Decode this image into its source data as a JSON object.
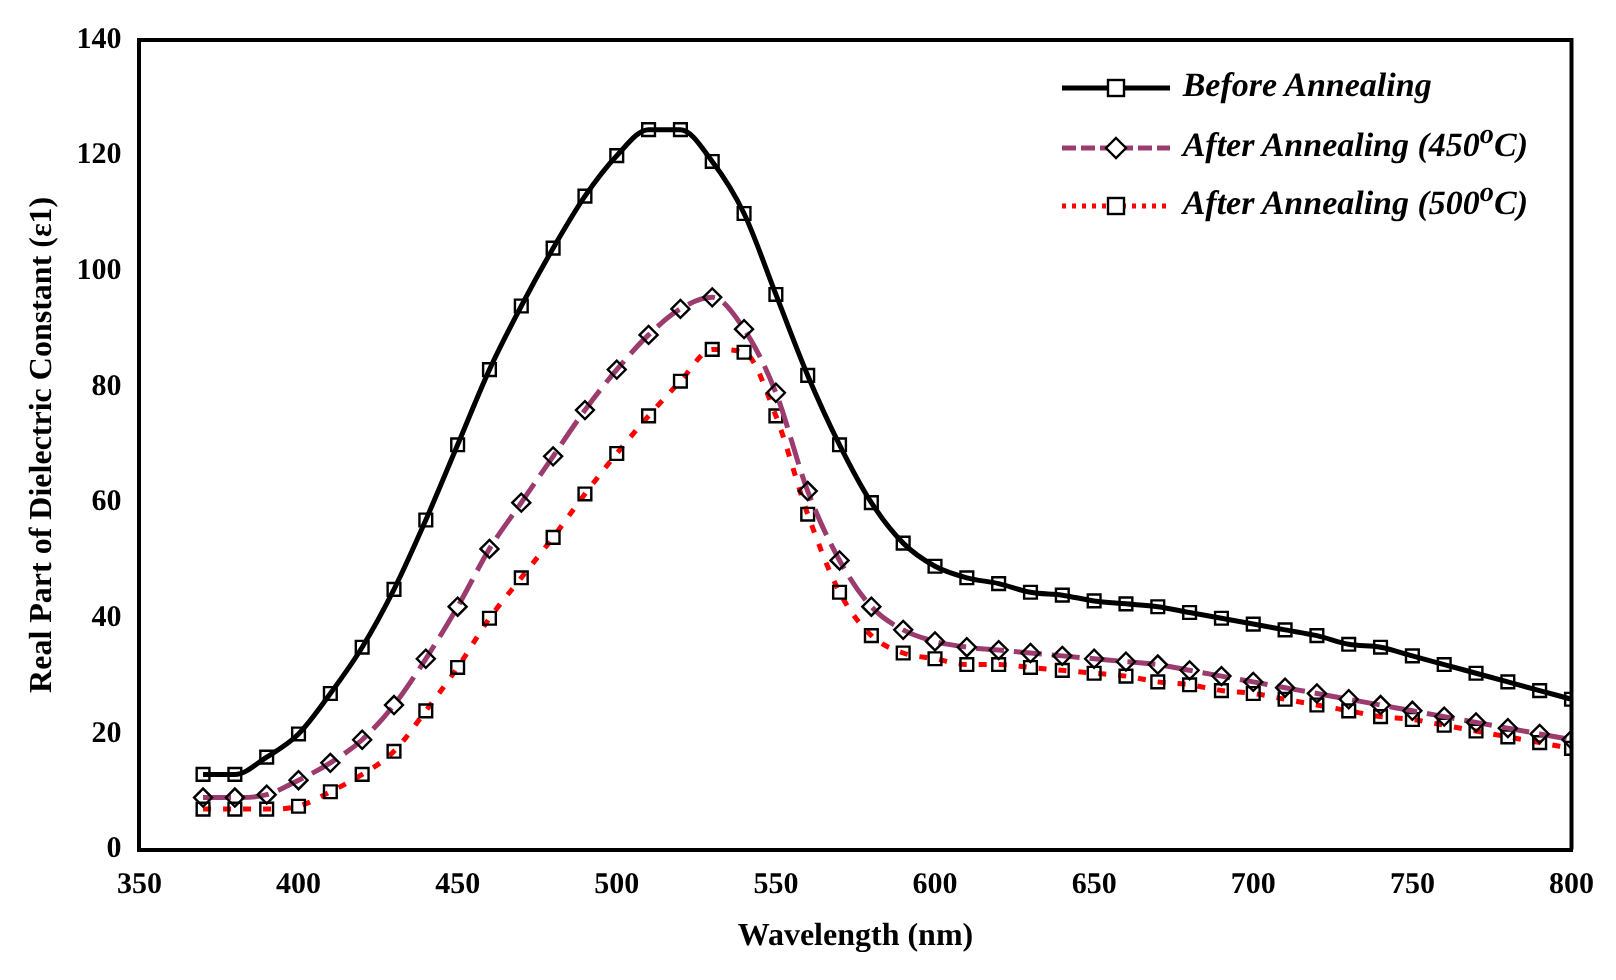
{
  "chart_data": {
    "type": "line",
    "xlabel": "Wavelength (nm)",
    "ylabel": "Real Part of Dielectric Constant (ε1)",
    "x": [
      370,
      380,
      390,
      400,
      410,
      420,
      430,
      440,
      450,
      460,
      470,
      480,
      490,
      500,
      510,
      520,
      530,
      540,
      550,
      560,
      570,
      580,
      590,
      600,
      610,
      620,
      630,
      640,
      650,
      660,
      670,
      680,
      690,
      700,
      710,
      720,
      730,
      740,
      750,
      760,
      770,
      780,
      790,
      800
    ],
    "series": [
      {
        "name": "Before Annealing",
        "color": "#000000",
        "marker": "square",
        "line_style": "solid",
        "values": [
          13,
          13,
          16,
          20,
          27,
          35,
          45,
          57,
          70,
          83,
          94,
          104,
          113,
          120,
          124.5,
          124.5,
          119,
          110,
          96,
          82,
          70,
          60,
          53,
          49,
          47,
          46,
          44.5,
          44,
          43,
          42.5,
          42,
          41,
          40,
          39,
          38,
          37,
          35.5,
          35,
          33.5,
          32,
          30.5,
          29,
          27.5,
          26
        ]
      },
      {
        "name": "After Annealing (450$^{o}$C)",
        "color": "#9b3b6e",
        "marker": "diamond",
        "line_style": "dashed",
        "values": [
          9,
          9,
          9.5,
          12,
          15,
          19,
          25,
          33,
          42,
          52,
          60,
          68,
          76,
          83,
          89,
          93.5,
          95.5,
          90,
          79,
          62,
          50,
          42,
          38,
          36,
          35,
          34.5,
          34,
          33.5,
          33,
          32.5,
          32,
          31,
          30,
          29,
          28,
          27,
          26,
          25,
          24,
          23,
          22,
          21,
          20,
          19
        ]
      },
      {
        "name": "After Annealing (500$^{o}$C)",
        "color": "#ff0000",
        "marker": "square",
        "line_style": "dotted",
        "values": [
          7,
          7,
          7,
          7.5,
          10,
          13,
          17,
          24,
          31.5,
          40,
          47,
          54,
          61.5,
          68.5,
          75,
          81,
          86.5,
          86,
          75,
          58,
          44.5,
          37,
          34,
          33,
          32,
          32,
          31.5,
          31,
          30.5,
          30,
          29,
          28.5,
          27.5,
          27,
          26,
          25,
          24,
          23,
          22.5,
          21.5,
          20.5,
          19.5,
          18.5,
          17.5
        ]
      }
    ],
    "xlim": [
      350,
      800
    ],
    "xticks": [
      350,
      400,
      450,
      500,
      550,
      600,
      650,
      700,
      750,
      800
    ],
    "ylim": [
      0,
      140
    ],
    "yticks": [
      0,
      20,
      40,
      60,
      80,
      100,
      120,
      140
    ],
    "grid": false,
    "legend": "top right"
  }
}
